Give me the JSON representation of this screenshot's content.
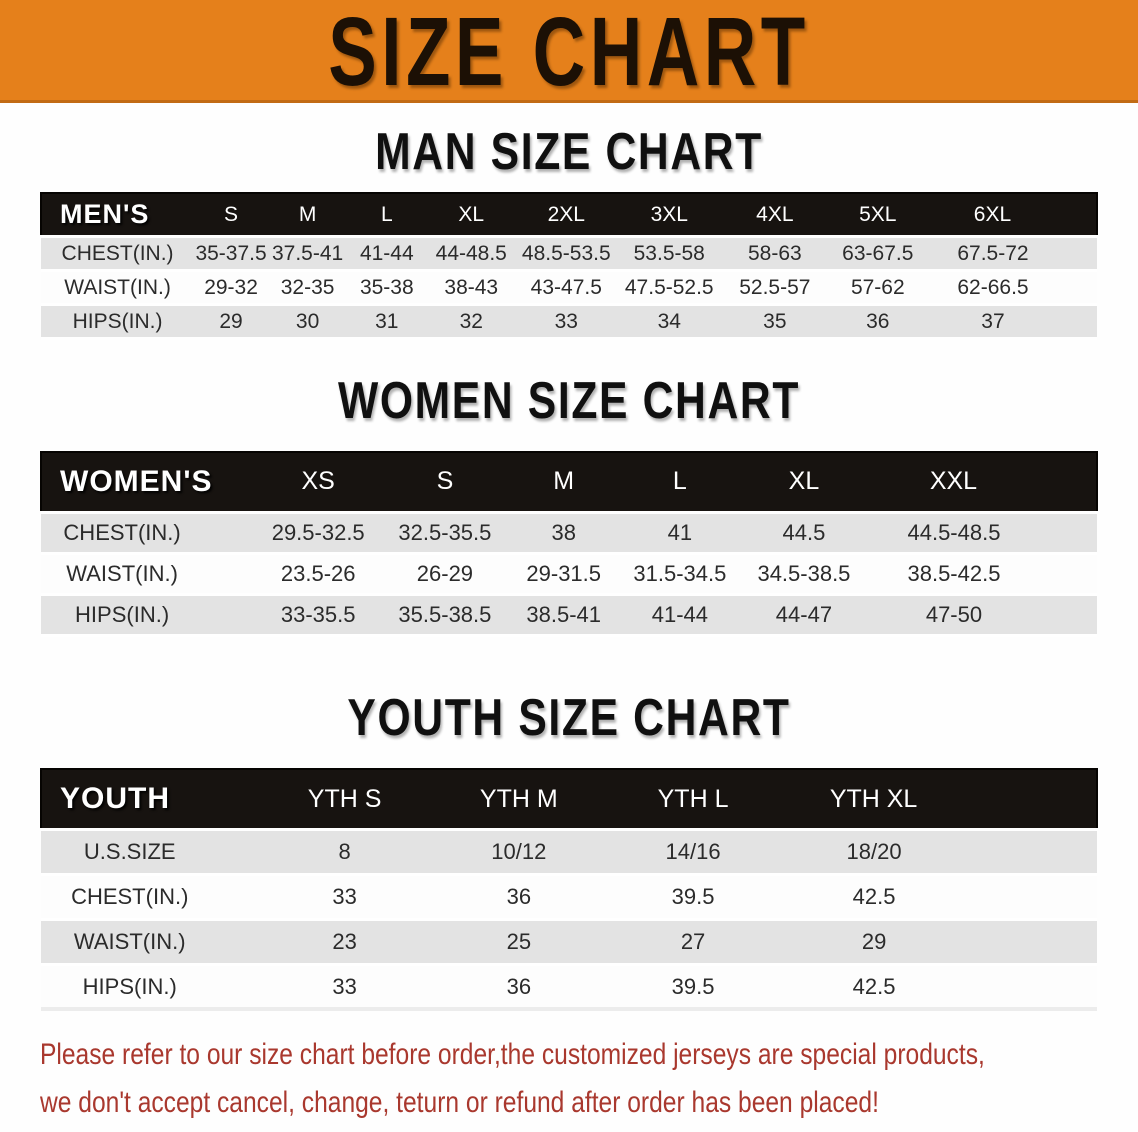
{
  "theme": {
    "banner-bg": "#E5801B",
    "banner-text": "#1C1005",
    "header-bar-bg": "#171310",
    "header-bar-text": "#FFFFFF",
    "stripe-gray": "#E3E3E3",
    "row-text": "#2B2B2B",
    "disclaimer-red": "#A9382E"
  },
  "banner": {
    "title": "SIZE CHART"
  },
  "sections": [
    {
      "id": "men",
      "heading": "MAN SIZE CHART",
      "table": {
        "header_label": "MEN'S",
        "columns": [
          "S",
          "M",
          "L",
          "XL",
          "2XL",
          "3XL",
          "4XL",
          "5XL",
          "6XL"
        ],
        "rows": [
          {
            "label": "CHEST(IN.)",
            "values": [
              "35-37.5",
              "37.5-41",
              "41-44",
              "44-48.5",
              "48.5-53.5",
              "53.5-58",
              "58-63",
              "63-67.5",
              "67.5-72"
            ]
          },
          {
            "label": "WAIST(IN.)",
            "values": [
              "29-32",
              "32-35",
              "35-38",
              "38-43",
              "43-47.5",
              "47.5-52.5",
              "52.5-57",
              "57-62",
              "62-66.5"
            ]
          },
          {
            "label": "HIPS(IN.)",
            "values": [
              "29",
              "30",
              "31",
              "32",
              "33",
              "34",
              "35",
              "36",
              "37"
            ]
          }
        ]
      }
    },
    {
      "id": "women",
      "heading": "WOMEN SIZE CHART",
      "table": {
        "header_label": "WOMEN'S",
        "columns": [
          "XS",
          "S",
          "M",
          "L",
          "XL",
          "XXL"
        ],
        "rows": [
          {
            "label": "CHEST(IN.)",
            "values": [
              "29.5-32.5",
              "32.5-35.5",
              "38",
              "41",
              "44.5",
              "44.5-48.5"
            ]
          },
          {
            "label": "WAIST(IN.)",
            "values": [
              "23.5-26",
              "26-29",
              "29-31.5",
              "31.5-34.5",
              "34.5-38.5",
              "38.5-42.5"
            ]
          },
          {
            "label": "HIPS(IN.)",
            "values": [
              "33-35.5",
              "35.5-38.5",
              "38.5-41",
              "41-44",
              "44-47",
              "47-50"
            ]
          }
        ]
      }
    },
    {
      "id": "youth",
      "heading": "YOUTH SIZE CHART",
      "table": {
        "header_label": "YOUTH",
        "columns": [
          "YTH S",
          "YTH M",
          "YTH L",
          "YTH XL"
        ],
        "rows": [
          {
            "label": "U.S.SIZE",
            "values": [
              "8",
              "10/12",
              "14/16",
              "18/20"
            ]
          },
          {
            "label": "CHEST(IN.)",
            "values": [
              "33",
              "36",
              "39.5",
              "42.5"
            ]
          },
          {
            "label": "WAIST(IN.)",
            "values": [
              "23",
              "25",
              "27",
              "29"
            ]
          },
          {
            "label": "HIPS(IN.)",
            "values": [
              "33",
              "36",
              "39.5",
              "42.5"
            ]
          }
        ]
      }
    }
  ],
  "disclaimer": {
    "lines": [
      "Please refer to our size chart before order,the customized jerseys are special products,",
      "we don't accept cancel, change, teturn or refund after order has been placed!"
    ]
  }
}
